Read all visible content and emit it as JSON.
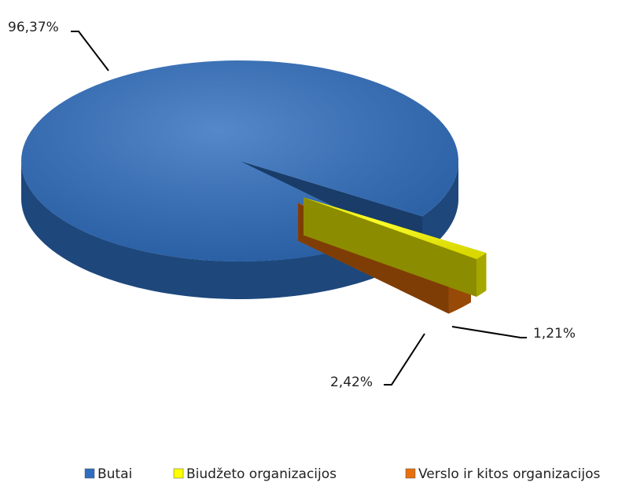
{
  "chart_data": {
    "type": "pie",
    "categories": [
      "Butai",
      "Biudžeto organizacijos",
      "Verslo ir kitos organizacijos"
    ],
    "values": [
      96.37,
      1.21,
      2.42
    ],
    "value_labels": [
      "96,37%",
      "1,21%",
      "2,42%"
    ],
    "colors": [
      "#2f6ebf",
      "#ffff00",
      "#e8700c"
    ],
    "legend": "bottom"
  }
}
